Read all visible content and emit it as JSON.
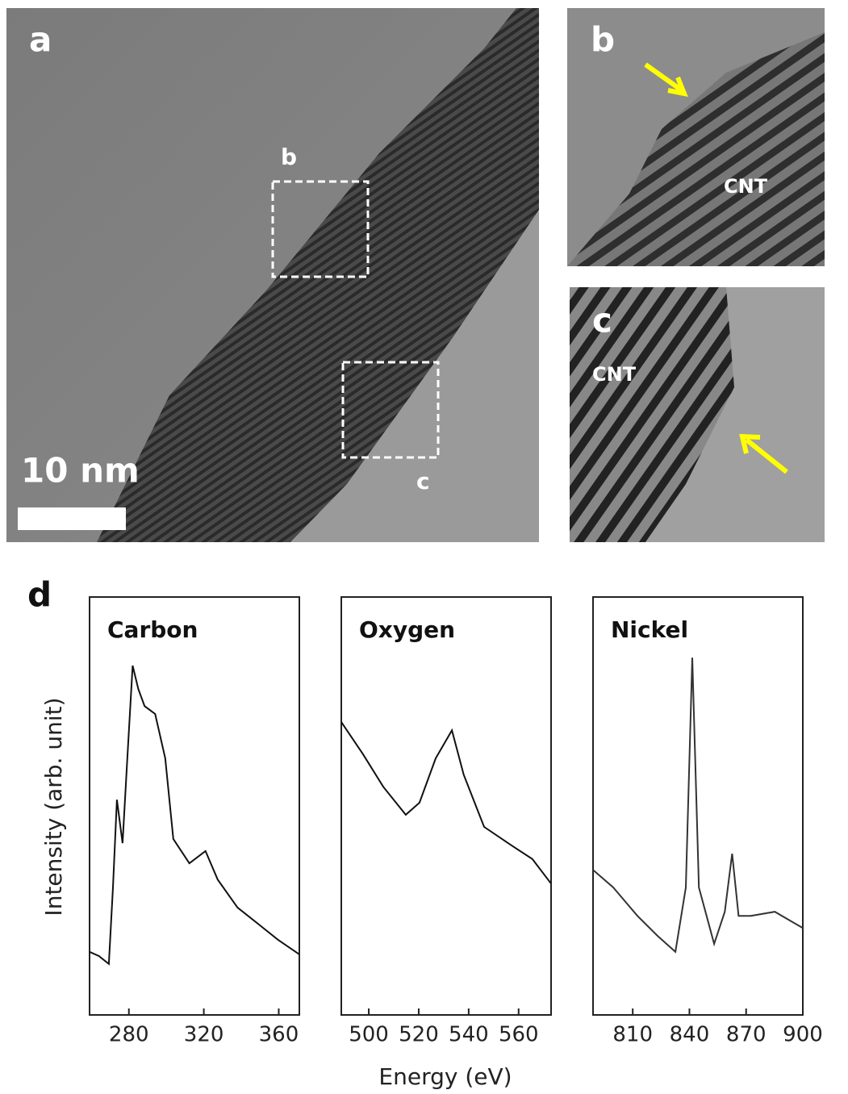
{
  "panels": {
    "a": {
      "label": "a",
      "scale_bar": "10 nm",
      "box_b": "b",
      "box_c": "c"
    },
    "b": {
      "label": "b",
      "tag": "CNT"
    },
    "c": {
      "label": "c",
      "tag": "CNT"
    },
    "d": {
      "label": "d"
    }
  },
  "figure": {
    "xlabel": "Energy (eV)",
    "ylabel": "Intensity (arb. unit)"
  },
  "chart_data": [
    {
      "type": "line",
      "title": "Carbon",
      "color": "#111111",
      "x": [
        259,
        264,
        269.3,
        271.5,
        273.6,
        276.6,
        279,
        282,
        285,
        288.4,
        294,
        299.4,
        303.7,
        312.3,
        320.9,
        327.4,
        338,
        349,
        359.6,
        371
      ],
      "values": [
        15.1,
        14.1,
        12.2,
        30.5,
        51.5,
        41.1,
        60,
        83.6,
        78,
        73.9,
        72,
        61.4,
        42.1,
        36.3,
        39.2,
        32.4,
        25.7,
        21.8,
        18,
        14.5
      ],
      "xlim": [
        259,
        371
      ],
      "ylim": [
        0,
        100
      ],
      "xticks": [
        280,
        320,
        360
      ]
    },
    {
      "type": "line",
      "title": "Oxygen",
      "color": "#111111",
      "x": [
        489,
        497.7,
        505.8,
        514.8,
        520.3,
        526.8,
        533.3,
        538,
        546.2,
        555.8,
        565.5,
        572.9
      ],
      "values": [
        70.1,
        62.4,
        54.6,
        47.9,
        50.8,
        61.4,
        68.1,
        57.5,
        45,
        41.1,
        37.3,
        31.5
      ],
      "xlim": [
        489,
        573
      ],
      "ylim": [
        0,
        100
      ],
      "xticks": [
        500,
        520,
        540,
        560
      ]
    },
    {
      "type": "line",
      "title": "Nickel",
      "color": "#333333",
      "x": [
        789,
        799.7,
        812.5,
        823.2,
        832.6,
        838.1,
        841.5,
        845,
        853.1,
        858.7,
        862.6,
        866,
        872.4,
        885.2,
        900
      ],
      "values": [
        34.7,
        30.5,
        23.7,
        18.9,
        15.1,
        30.5,
        85.5,
        30.5,
        17,
        24.7,
        38.6,
        23.7,
        23.7,
        24.7,
        20.8
      ],
      "xlim": [
        789,
        900
      ],
      "ylim": [
        0,
        100
      ],
      "xticks": [
        810,
        840,
        870,
        900
      ]
    }
  ]
}
